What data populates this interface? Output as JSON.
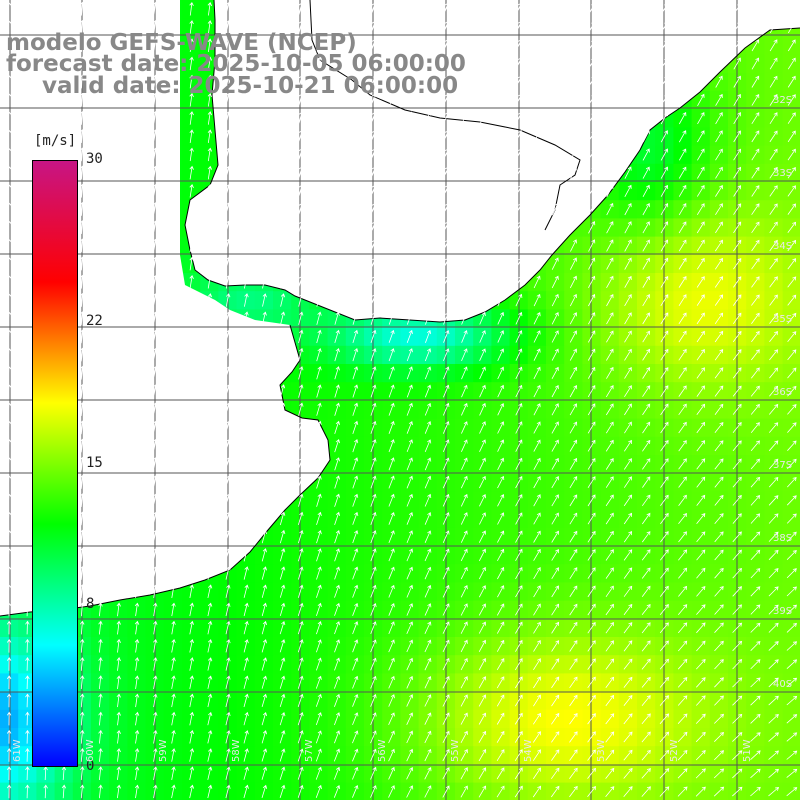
{
  "title": {
    "line1": "modelo GEFS-WAVE (NCEP)",
    "line2": "forecast date: 2025-10-05 06:00:00",
    "line3": "valid date: 2025-10-21 06:00:00"
  },
  "colorbar": {
    "unit": "[m/s]",
    "ticks": [
      {
        "label": "30",
        "value": 30
      },
      {
        "label": "22",
        "value": 22
      },
      {
        "label": "15",
        "value": 15
      },
      {
        "label": "8",
        "value": 8
      },
      {
        "label": "0",
        "value": 0
      }
    ],
    "range": [
      0,
      30
    ],
    "colors": [
      "#0000ff",
      "#00ffff",
      "#00ff00",
      "#ffff00",
      "#ff0000",
      "#c71585"
    ]
  },
  "map": {
    "lat_labels": [
      "32S",
      "33S",
      "34S",
      "35S",
      "36S",
      "37S",
      "38S",
      "39S",
      "40S"
    ],
    "lon_labels": [
      "61W",
      "60W",
      "59W",
      "58W",
      "57W",
      "56W",
      "55W",
      "54W",
      "53W",
      "52W",
      "51W"
    ],
    "land_color": "#ffffff",
    "grid_color": "#555555",
    "arrow_color": "#ffffff",
    "coastline_color": "#000000"
  }
}
